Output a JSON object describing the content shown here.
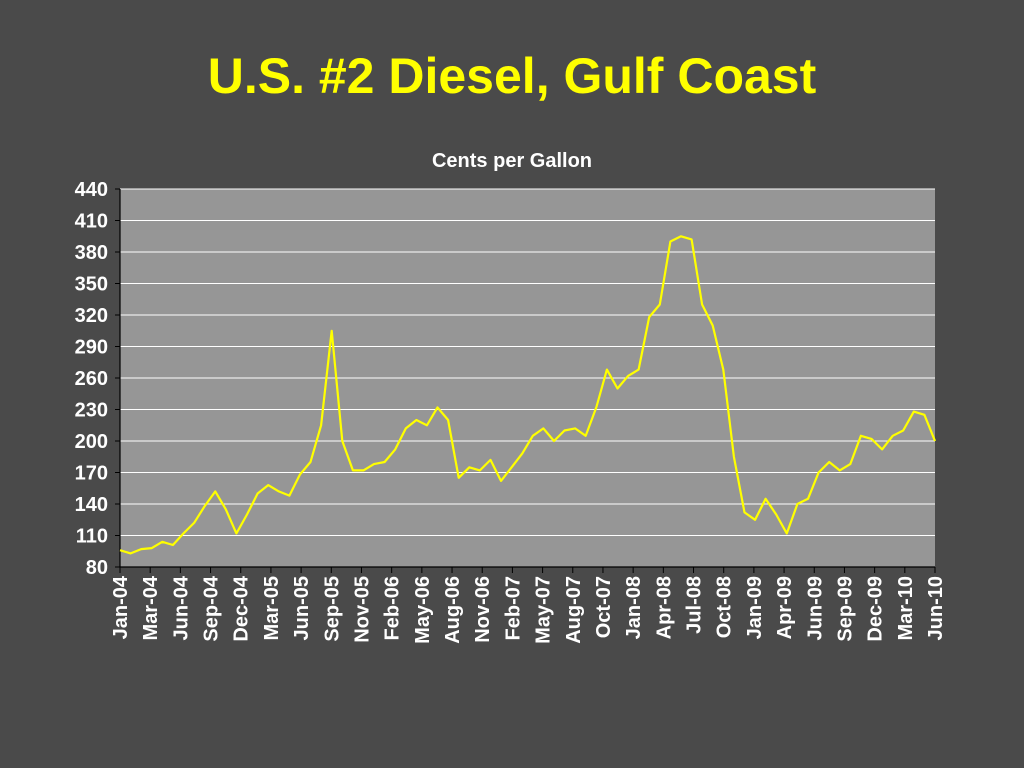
{
  "chart_data": {
    "type": "line",
    "title": "U.S. #2 Diesel, Gulf Coast",
    "subtitle": "Cents per Gallon",
    "xlabel": "",
    "ylabel": "",
    "ylim": [
      80,
      440
    ],
    "yticks": [
      "80",
      "110",
      "140",
      "170",
      "200",
      "230",
      "260",
      "290",
      "320",
      "350",
      "380",
      "410",
      "440"
    ],
    "xticks": [
      "Jan-04",
      "Mar-04",
      "Jun-04",
      "Sep-04",
      "Dec-04",
      "Mar-05",
      "Jun-05",
      "Sep-05",
      "Nov-05",
      "Feb-06",
      "May-06",
      "Aug-06",
      "Nov-06",
      "Feb-07",
      "May-07",
      "Aug-07",
      "Oct-07",
      "Jan-08",
      "Apr-08",
      "Jul-08",
      "Oct-08",
      "Jan-09",
      "Apr-09",
      "Jun-09",
      "Sep-09",
      "Dec-09",
      "Mar-10",
      "Jun-10"
    ],
    "grid": true,
    "legend": "none",
    "colors": {
      "line": "#ffff00",
      "plot_bg": "#969696",
      "grid": "#ffffff",
      "title": "#ffff00"
    },
    "series": [
      {
        "x": [
          "2004-01",
          "2004-02",
          "2004-03",
          "2004-04",
          "2004-05",
          "2004-06",
          "2004-07",
          "2004-08",
          "2004-09",
          "2004-10",
          "2004-11",
          "2004-12",
          "2005-01",
          "2005-02",
          "2005-03",
          "2005-04",
          "2005-05",
          "2005-06",
          "2005-07",
          "2005-08",
          "2005-09",
          "2005-10",
          "2005-11",
          "2005-12",
          "2006-01",
          "2006-02",
          "2006-03",
          "2006-04",
          "2006-05",
          "2006-06",
          "2006-07",
          "2006-08",
          "2006-09",
          "2006-10",
          "2006-11",
          "2006-12",
          "2007-01",
          "2007-02",
          "2007-03",
          "2007-04",
          "2007-05",
          "2007-06",
          "2007-07",
          "2007-08",
          "2007-09",
          "2007-10",
          "2007-11",
          "2007-12",
          "2008-01",
          "2008-02",
          "2008-03",
          "2008-04",
          "2008-05",
          "2008-06",
          "2008-07",
          "2008-08",
          "2008-09",
          "2008-10",
          "2008-11",
          "2008-12",
          "2009-01",
          "2009-02",
          "2009-03",
          "2009-04",
          "2009-05",
          "2009-06",
          "2009-07",
          "2009-08",
          "2009-09",
          "2009-10",
          "2009-11",
          "2009-12",
          "2010-01",
          "2010-02",
          "2010-03",
          "2010-04",
          "2010-05",
          "2010-06"
        ],
        "values": [
          96,
          93,
          97,
          98,
          104,
          101,
          112,
          122,
          138,
          152,
          135,
          112,
          130,
          150,
          158,
          152,
          148,
          168,
          180,
          215,
          305,
          200,
          172,
          172,
          178,
          180,
          192,
          212,
          220,
          215,
          232,
          220,
          165,
          175,
          172,
          182,
          162,
          175,
          188,
          205,
          212,
          200,
          210,
          212,
          205,
          232,
          268,
          250,
          262,
          268,
          318,
          330,
          390,
          395,
          392,
          330,
          310,
          268,
          185,
          132,
          125,
          145,
          130,
          112,
          140,
          145,
          170,
          180,
          172,
          178,
          205,
          202,
          192,
          205,
          210,
          228,
          225,
          200
        ]
      }
    ]
  }
}
